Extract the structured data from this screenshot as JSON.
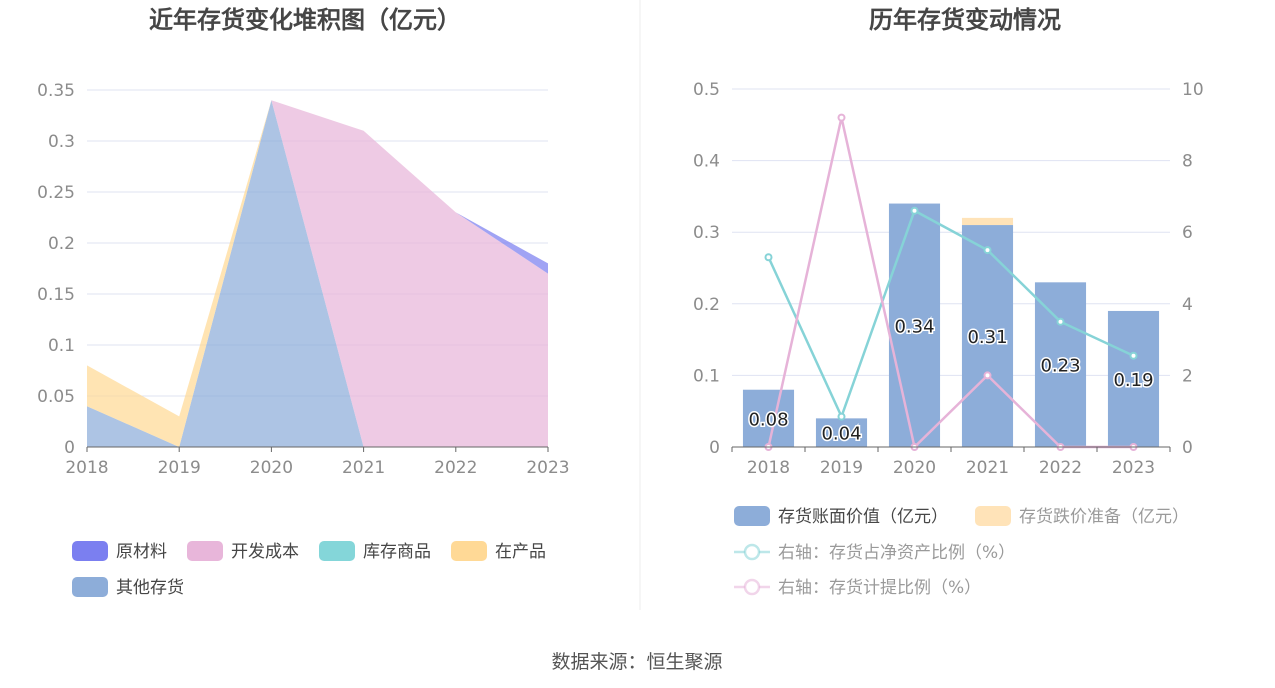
{
  "colors": {
    "raw_material": "#7b7ff0",
    "dev_cost": "#e8b6da",
    "stock_goods": "#84d6d9",
    "wip": "#ffd996",
    "other": "#8dadd9",
    "book_value": "#8dadd9",
    "impairment": "#ffe3b8",
    "line_net_asset": "#86d3d7",
    "line_provision": "#e6b3d8",
    "grid": "#dfe3f2",
    "axis": "#666666"
  },
  "footer": {
    "source": "数据来源：恒生聚源"
  },
  "chart_data": [
    {
      "type": "area",
      "stacked": true,
      "title": "近年存货变化堆积图（亿元）",
      "categories": [
        "2018",
        "2019",
        "2020",
        "2021",
        "2022",
        "2023"
      ],
      "ylim": [
        0,
        0.35
      ],
      "y_ticks": [
        "0",
        "0.05",
        "0.1",
        "0.15",
        "0.2",
        "0.25",
        "0.3",
        "0.35"
      ],
      "grid": true,
      "legend_position": "bottom",
      "series": [
        {
          "name": "其他存货",
          "color_key": "other",
          "values": [
            0.04,
            0,
            0.34,
            0,
            0,
            0
          ]
        },
        {
          "name": "在产品",
          "color_key": "wip",
          "values": [
            0.04,
            0.03,
            0,
            0,
            0,
            0
          ]
        },
        {
          "name": "库存商品",
          "color_key": "stock_goods",
          "values": [
            0,
            0,
            0,
            0,
            0,
            0
          ]
        },
        {
          "name": "开发成本",
          "color_key": "dev_cost",
          "values": [
            0,
            0,
            0,
            0.31,
            0.23,
            0.17
          ]
        },
        {
          "name": "原材料",
          "color_key": "raw_material",
          "values": [
            0,
            0,
            0,
            0,
            0,
            0.01
          ]
        }
      ],
      "legend_order": [
        "原材料",
        "开发成本",
        "库存商品",
        "在产品",
        "其他存货"
      ]
    },
    {
      "type": "bar",
      "title": "历年存货变动情况",
      "categories": [
        "2018",
        "2019",
        "2020",
        "2021",
        "2022",
        "2023"
      ],
      "ylim": [
        0,
        0.5
      ],
      "y_ticks": [
        "0",
        "0.1",
        "0.2",
        "0.3",
        "0.4",
        "0.5"
      ],
      "y2lim": [
        0,
        10
      ],
      "y2_ticks": [
        "0",
        "2",
        "4",
        "6",
        "8",
        "10"
      ],
      "grid": true,
      "legend_position": "bottom",
      "bar_series": [
        {
          "name": "存货账面价值（亿元）",
          "color_key": "book_value",
          "values": [
            0.08,
            0.04,
            0.34,
            0.31,
            0.23,
            0.19
          ],
          "labels": [
            "0.08",
            "0.04",
            "0.34",
            "0.31",
            "0.23",
            "0.19"
          ]
        },
        {
          "name": "存货跌价准备（亿元）",
          "color_key": "impairment",
          "values": [
            0,
            0,
            0,
            0.01,
            0,
            0
          ]
        }
      ],
      "line_series": [
        {
          "name": "右轴：存货占净资产比例（%）",
          "color_key": "line_net_asset",
          "values": [
            5.3,
            0.85,
            6.6,
            5.5,
            3.5,
            2.55
          ]
        },
        {
          "name": "右轴：存货计提比例（%）",
          "color_key": "line_provision",
          "values": [
            0,
            9.2,
            0,
            2.0,
            0,
            0
          ]
        }
      ]
    }
  ]
}
